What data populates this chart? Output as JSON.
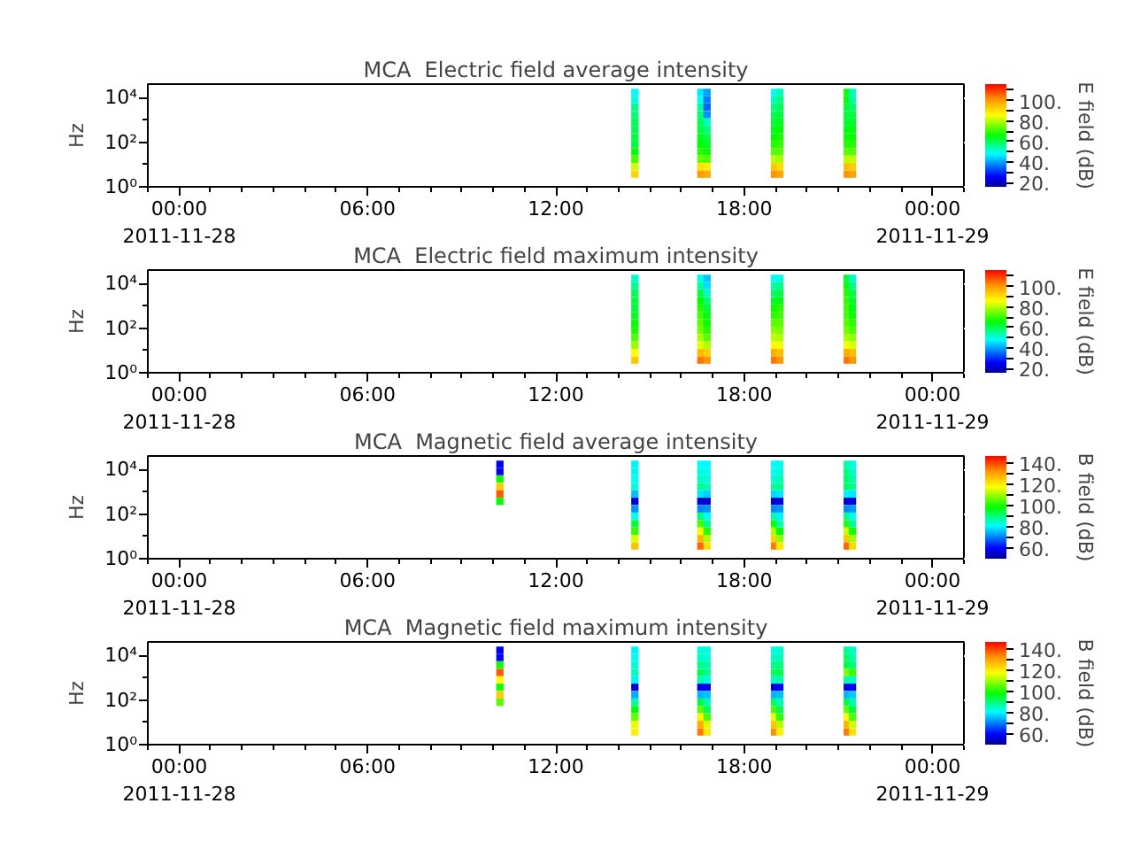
{
  "chart_data": [
    {
      "type": "scatter",
      "title": "MCA  Electric field average intensity",
      "ylabel": "Hz",
      "clabel": "E field (dB)",
      "log": "y",
      "marker": "square",
      "x": [
        "2011-11-28T14:31",
        "2011-11-28T16:37",
        "2011-11-28T16:49",
        "2011-11-28T18:58",
        "2011-11-28T19:08",
        "2011-11-28T21:17",
        "2011-11-28T21:27",
        "2011-11-28T14:31",
        "2011-11-28T16:37",
        "2011-11-28T16:49",
        "2011-11-28T18:58",
        "2011-11-28T19:08",
        "2011-11-28T21:17",
        "2011-11-28T21:27",
        "2011-11-28T14:31",
        "2011-11-28T16:37",
        "2011-11-28T16:49",
        "2011-11-28T18:58",
        "2011-11-28T19:08",
        "2011-11-28T21:17",
        "2011-11-28T21:27",
        "2011-11-28T14:31",
        "2011-11-28T16:37",
        "2011-11-28T16:49",
        "2011-11-28T18:58",
        "2011-11-28T19:08",
        "2011-11-28T21:17",
        "2011-11-28T21:27",
        "2011-11-28T14:31",
        "2011-11-28T16:37",
        "2011-11-28T16:49",
        "2011-11-28T18:58",
        "2011-11-28T19:08",
        "2011-11-28T21:17",
        "2011-11-28T21:27",
        "2011-11-28T14:31",
        "2011-11-28T16:37",
        "2011-11-28T16:49",
        "2011-11-28T18:58",
        "2011-11-28T19:08",
        "2011-11-28T21:17",
        "2011-11-28T21:27",
        "2011-11-28T14:31",
        "2011-11-28T16:37",
        "2011-11-28T16:49",
        "2011-11-28T18:58",
        "2011-11-28T19:08",
        "2011-11-28T21:17",
        "2011-11-28T21:27",
        "2011-11-28T14:31",
        "2011-11-28T16:37",
        "2011-11-28T16:49",
        "2011-11-28T18:58",
        "2011-11-28T19:08",
        "2011-11-28T21:17",
        "2011-11-28T21:27",
        "2011-11-28T14:31",
        "2011-11-28T16:37",
        "2011-11-28T16:49",
        "2011-11-28T18:58",
        "2011-11-28T19:08",
        "2011-11-28T21:17",
        "2011-11-28T21:27",
        "2011-11-28T14:31",
        "2011-11-28T16:37",
        "2011-11-28T16:49",
        "2011-11-28T18:58",
        "2011-11-28T19:08",
        "2011-11-28T21:17",
        "2011-11-28T21:27",
        "2011-11-28T14:31",
        "2011-11-28T16:37",
        "2011-11-28T16:49",
        "2011-11-28T18:58",
        "2011-11-28T19:08",
        "2011-11-28T21:17",
        "2011-11-28T21:27",
        "2011-11-28T14:31",
        "2011-11-28T16:37",
        "2011-11-28T16:49",
        "2011-11-28T18:58",
        "2011-11-28T19:08",
        "2011-11-28T21:17",
        "2011-11-28T21:27"
      ],
      "values": [
        17000,
        17000,
        17000,
        17000,
        17000,
        17000,
        17000,
        8000,
        8000,
        8000,
        8000,
        8000,
        8000,
        8000,
        3700,
        3700,
        3700,
        3700,
        3700,
        3700,
        3700,
        1700,
        1700,
        1700,
        1700,
        1700,
        1700,
        1700,
        800,
        800,
        800,
        800,
        800,
        800,
        800,
        370,
        370,
        370,
        370,
        370,
        370,
        370,
        170,
        170,
        170,
        170,
        170,
        170,
        170,
        80,
        80,
        80,
        80,
        80,
        80,
        80,
        37,
        37,
        37,
        37,
        37,
        37,
        37,
        17,
        17,
        17,
        17,
        17,
        17,
        17,
        8,
        8,
        8,
        8,
        8,
        8,
        8,
        3.7,
        3.7,
        3.7,
        3.7,
        3.7,
        3.7,
        3.7
      ],
      "cvalues": [
        48,
        46,
        40,
        48,
        53,
        67,
        53,
        50,
        49,
        37,
        52,
        57,
        66,
        55,
        56,
        55,
        35,
        57,
        60,
        62,
        59,
        58,
        58,
        39,
        60,
        62,
        62,
        61,
        60,
        60,
        52,
        62,
        64,
        63,
        63,
        60,
        62,
        57,
        64,
        66,
        65,
        65,
        62,
        64,
        61,
        66,
        68,
        67,
        67,
        62,
        66,
        64,
        69,
        70,
        69,
        69,
        66,
        69,
        67,
        73,
        73,
        73,
        73,
        72,
        74,
        73,
        81,
        79,
        81,
        81,
        82,
        90,
        88,
        94,
        91,
        95,
        93,
        92,
        100,
        98,
        101,
        99,
        101,
        99
      ],
      "clim": [
        16,
        116
      ],
      "cticks": [
        {
          "value": 20,
          "label": "20."
        },
        {
          "value": 30,
          "label": null
        },
        {
          "value": 40,
          "label": "40."
        },
        {
          "value": 50,
          "label": null
        },
        {
          "value": 60,
          "label": "60."
        },
        {
          "value": 70,
          "label": null
        },
        {
          "value": 80,
          "label": "80."
        },
        {
          "value": 90,
          "label": null
        },
        {
          "value": 100,
          "label": "100."
        },
        {
          "value": 110,
          "label": null
        }
      ],
      "xlim": [
        "2011-11-27T23:00",
        "2011-11-29T01:00"
      ],
      "xticks": [
        {
          "value": "2011-11-28T00:00",
          "label": "00:00\n2011-11-28"
        },
        {
          "value": "2011-11-28T06:00",
          "label": "06:00"
        },
        {
          "value": "2011-11-28T12:00",
          "label": "12:00"
        },
        {
          "value": "2011-11-28T18:00",
          "label": "18:00"
        },
        {
          "value": "2011-11-29T00:00",
          "label": "00:00\n2011-11-29"
        },
        {
          "value": "2011-11-27T23:00",
          "label": null
        },
        {
          "value": "2011-11-28T01:00",
          "label": null
        },
        {
          "value": "2011-11-28T02:00",
          "label": null
        },
        {
          "value": "2011-11-28T03:00",
          "label": null
        },
        {
          "value": "2011-11-28T04:00",
          "label": null
        },
        {
          "value": "2011-11-28T05:00",
          "label": null
        },
        {
          "value": "2011-11-28T07:00",
          "label": null
        },
        {
          "value": "2011-11-28T08:00",
          "label": null
        },
        {
          "value": "2011-11-28T09:00",
          "label": null
        },
        {
          "value": "2011-11-28T10:00",
          "label": null
        },
        {
          "value": "2011-11-28T11:00",
          "label": null
        },
        {
          "value": "2011-11-28T13:00",
          "label": null
        },
        {
          "value": "2011-11-28T14:00",
          "label": null
        },
        {
          "value": "2011-11-28T15:00",
          "label": null
        },
        {
          "value": "2011-11-28T16:00",
          "label": null
        },
        {
          "value": "2011-11-28T17:00",
          "label": null
        },
        {
          "value": "2011-11-28T19:00",
          "label": null
        },
        {
          "value": "2011-11-28T20:00",
          "label": null
        },
        {
          "value": "2011-11-28T21:00",
          "label": null
        },
        {
          "value": "2011-11-28T22:00",
          "label": null
        },
        {
          "value": "2011-11-28T23:00",
          "label": null
        },
        {
          "value": "2011-11-29T01:00",
          "label": null
        }
      ],
      "ylim": [
        1,
        40000
      ],
      "yticks": [
        {
          "value": 1,
          "label": "10⁰"
        },
        {
          "value": 10,
          "label": null
        },
        {
          "value": 100,
          "label": "10²"
        },
        {
          "value": 1000,
          "label": null
        },
        {
          "value": 10000,
          "label": "10⁴"
        }
      ]
    },
    {
      "type": "scatter",
      "title": "MCA  Electric field maximum intensity",
      "ylabel": "Hz",
      "clabel": "E field (dB)",
      "log": "y",
      "marker": "square",
      "x": [
        "2011-11-28T14:31",
        "2011-11-28T16:37",
        "2011-11-28T16:49",
        "2011-11-28T18:58",
        "2011-11-28T19:08",
        "2011-11-28T21:17",
        "2011-11-28T21:27",
        "2011-11-28T14:31",
        "2011-11-28T16:37",
        "2011-11-28T16:49",
        "2011-11-28T18:58",
        "2011-11-28T19:08",
        "2011-11-28T21:17",
        "2011-11-28T21:27",
        "2011-11-28T14:31",
        "2011-11-28T16:37",
        "2011-11-28T16:49",
        "2011-11-28T18:58",
        "2011-11-28T19:08",
        "2011-11-28T21:17",
        "2011-11-28T21:27",
        "2011-11-28T14:31",
        "2011-11-28T16:37",
        "2011-11-28T16:49",
        "2011-11-28T18:58",
        "2011-11-28T19:08",
        "2011-11-28T21:17",
        "2011-11-28T21:27",
        "2011-11-28T14:31",
        "2011-11-28T16:37",
        "2011-11-28T16:49",
        "2011-11-28T18:58",
        "2011-11-28T19:08",
        "2011-11-28T21:17",
        "2011-11-28T21:27",
        "2011-11-28T14:31",
        "2011-11-28T16:37",
        "2011-11-28T16:49",
        "2011-11-28T18:58",
        "2011-11-28T19:08",
        "2011-11-28T21:17",
        "2011-11-28T21:27",
        "2011-11-28T14:31",
        "2011-11-28T16:37",
        "2011-11-28T16:49",
        "2011-11-28T18:58",
        "2011-11-28T19:08",
        "2011-11-28T21:17",
        "2011-11-28T21:27",
        "2011-11-28T14:31",
        "2011-11-28T16:37",
        "2011-11-28T16:49",
        "2011-11-28T18:58",
        "2011-11-28T19:08",
        "2011-11-28T21:17",
        "2011-11-28T21:27",
        "2011-11-28T14:31",
        "2011-11-28T16:37",
        "2011-11-28T16:49",
        "2011-11-28T18:58",
        "2011-11-28T19:08",
        "2011-11-28T21:17",
        "2011-11-28T21:27",
        "2011-11-28T14:31",
        "2011-11-28T16:37",
        "2011-11-28T16:49",
        "2011-11-28T18:58",
        "2011-11-28T19:08",
        "2011-11-28T21:17",
        "2011-11-28T21:27",
        "2011-11-28T14:31",
        "2011-11-28T16:37",
        "2011-11-28T16:49",
        "2011-11-28T18:58",
        "2011-11-28T19:08",
        "2011-11-28T21:17",
        "2011-11-28T21:27",
        "2011-11-28T14:31",
        "2011-11-28T16:37",
        "2011-11-28T16:49",
        "2011-11-28T18:58",
        "2011-11-28T19:08",
        "2011-11-28T21:17",
        "2011-11-28T21:27"
      ],
      "values": [
        17000,
        17000,
        17000,
        17000,
        17000,
        17000,
        17000,
        8000,
        8000,
        8000,
        8000,
        8000,
        8000,
        8000,
        3700,
        3700,
        3700,
        3700,
        3700,
        3700,
        3700,
        1700,
        1700,
        1700,
        1700,
        1700,
        1700,
        1700,
        800,
        800,
        800,
        800,
        800,
        800,
        800,
        370,
        370,
        370,
        370,
        370,
        370,
        370,
        170,
        170,
        170,
        170,
        170,
        170,
        170,
        80,
        80,
        80,
        80,
        80,
        80,
        80,
        37,
        37,
        37,
        37,
        37,
        37,
        37,
        17,
        17,
        17,
        17,
        17,
        17,
        17,
        8,
        8,
        8,
        8,
        8,
        8,
        8,
        3.7,
        3.7,
        3.7,
        3.7,
        3.7,
        3.7,
        3.7
      ],
      "cvalues": [
        52,
        50,
        43,
        48,
        50,
        63,
        52,
        56,
        55,
        45,
        54,
        56,
        66,
        57,
        60,
        61,
        52,
        59,
        61,
        69,
        61,
        62,
        66,
        58,
        63,
        65,
        70,
        63,
        62,
        69,
        62,
        67,
        69,
        71,
        65,
        64,
        71,
        65,
        69,
        71,
        71,
        67,
        66,
        73,
        67,
        73,
        73,
        73,
        69,
        68,
        75,
        69,
        77,
        76,
        75,
        72,
        72,
        79,
        73,
        81,
        80,
        79,
        77,
        78,
        84,
        80,
        87,
        85,
        85,
        83,
        86,
        96,
        93,
        98,
        95,
        98,
        95,
        94,
        104,
        101,
        104,
        101,
        104,
        101
      ],
      "clim": [
        16,
        116
      ],
      "cticks": [
        {
          "value": 20,
          "label": "20."
        },
        {
          "value": 30,
          "label": null
        },
        {
          "value": 40,
          "label": "40."
        },
        {
          "value": 50,
          "label": null
        },
        {
          "value": 60,
          "label": "60."
        },
        {
          "value": 70,
          "label": null
        },
        {
          "value": 80,
          "label": "80."
        },
        {
          "value": 90,
          "label": null
        },
        {
          "value": 100,
          "label": "100."
        },
        {
          "value": 110,
          "label": null
        }
      ],
      "xlim": [
        "2011-11-27T23:00",
        "2011-11-29T01:00"
      ],
      "xticks": [
        {
          "value": "2011-11-28T00:00",
          "label": "00:00\n2011-11-28"
        },
        {
          "value": "2011-11-28T06:00",
          "label": "06:00"
        },
        {
          "value": "2011-11-28T12:00",
          "label": "12:00"
        },
        {
          "value": "2011-11-28T18:00",
          "label": "18:00"
        },
        {
          "value": "2011-11-29T00:00",
          "label": "00:00\n2011-11-29"
        },
        {
          "value": "2011-11-27T23:00",
          "label": null
        },
        {
          "value": "2011-11-28T01:00",
          "label": null
        },
        {
          "value": "2011-11-28T02:00",
          "label": null
        },
        {
          "value": "2011-11-28T03:00",
          "label": null
        },
        {
          "value": "2011-11-28T04:00",
          "label": null
        },
        {
          "value": "2011-11-28T05:00",
          "label": null
        },
        {
          "value": "2011-11-28T07:00",
          "label": null
        },
        {
          "value": "2011-11-28T08:00",
          "label": null
        },
        {
          "value": "2011-11-28T09:00",
          "label": null
        },
        {
          "value": "2011-11-28T10:00",
          "label": null
        },
        {
          "value": "2011-11-28T11:00",
          "label": null
        },
        {
          "value": "2011-11-28T13:00",
          "label": null
        },
        {
          "value": "2011-11-28T14:00",
          "label": null
        },
        {
          "value": "2011-11-28T15:00",
          "label": null
        },
        {
          "value": "2011-11-28T16:00",
          "label": null
        },
        {
          "value": "2011-11-28T17:00",
          "label": null
        },
        {
          "value": "2011-11-28T19:00",
          "label": null
        },
        {
          "value": "2011-11-28T20:00",
          "label": null
        },
        {
          "value": "2011-11-28T21:00",
          "label": null
        },
        {
          "value": "2011-11-28T22:00",
          "label": null
        },
        {
          "value": "2011-11-28T23:00",
          "label": null
        },
        {
          "value": "2011-11-29T01:00",
          "label": null
        }
      ],
      "ylim": [
        1,
        40000
      ],
      "yticks": [
        {
          "value": 1,
          "label": "10⁰"
        },
        {
          "value": 10,
          "label": null
        },
        {
          "value": 100,
          "label": "10²"
        },
        {
          "value": 1000,
          "label": null
        },
        {
          "value": 10000,
          "label": "10⁴"
        }
      ]
    },
    {
      "type": "scatter",
      "title": "MCA  Magnetic field average intensity",
      "ylabel": "Hz",
      "clabel": "B field (dB)",
      "log": "y",
      "marker": "square",
      "x": [
        "2011-11-28T10:13",
        "2011-11-28T14:31",
        "2011-11-28T16:37",
        "2011-11-28T16:49",
        "2011-11-28T18:58",
        "2011-11-28T19:08",
        "2011-11-28T21:17",
        "2011-11-28T21:27",
        "2011-11-28T10:13",
        "2011-11-28T14:31",
        "2011-11-28T16:37",
        "2011-11-28T16:49",
        "2011-11-28T18:58",
        "2011-11-28T19:08",
        "2011-11-28T21:17",
        "2011-11-28T21:27",
        "2011-11-28T10:13",
        "2011-11-28T14:31",
        "2011-11-28T16:37",
        "2011-11-28T16:49",
        "2011-11-28T18:58",
        "2011-11-28T19:08",
        "2011-11-28T21:17",
        "2011-11-28T21:27",
        "2011-11-28T10:13",
        "2011-11-28T14:31",
        "2011-11-28T16:37",
        "2011-11-28T16:49",
        "2011-11-28T18:58",
        "2011-11-28T19:08",
        "2011-11-28T21:17",
        "2011-11-28T21:27",
        "2011-11-28T10:13",
        "2011-11-28T14:31",
        "2011-11-28T16:37",
        "2011-11-28T16:49",
        "2011-11-28T18:58",
        "2011-11-28T19:08",
        "2011-11-28T21:17",
        "2011-11-28T21:27",
        "2011-11-28T10:13",
        "2011-11-28T14:31",
        "2011-11-28T16:37",
        "2011-11-28T16:49",
        "2011-11-28T18:58",
        "2011-11-28T19:08",
        "2011-11-28T21:17",
        "2011-11-28T21:27",
        "2011-11-28T14:31",
        "2011-11-28T16:37",
        "2011-11-28T16:49",
        "2011-11-28T18:58",
        "2011-11-28T19:08",
        "2011-11-28T21:17",
        "2011-11-28T21:27",
        "2011-11-28T14:31",
        "2011-11-28T16:37",
        "2011-11-28T16:49",
        "2011-11-28T18:58",
        "2011-11-28T19:08",
        "2011-11-28T21:17",
        "2011-11-28T21:27",
        "2011-11-28T14:31",
        "2011-11-28T16:37",
        "2011-11-28T16:49",
        "2011-11-28T18:58",
        "2011-11-28T19:08",
        "2011-11-28T21:17",
        "2011-11-28T21:27",
        "2011-11-28T14:31",
        "2011-11-28T16:37",
        "2011-11-28T16:49",
        "2011-11-28T18:58",
        "2011-11-28T19:08",
        "2011-11-28T21:17",
        "2011-11-28T21:27",
        "2011-11-28T14:31",
        "2011-11-28T16:37",
        "2011-11-28T16:49",
        "2011-11-28T18:58",
        "2011-11-28T19:08",
        "2011-11-28T21:17",
        "2011-11-28T21:27",
        "2011-11-28T14:31",
        "2011-11-28T16:37",
        "2011-11-28T16:49",
        "2011-11-28T18:58",
        "2011-11-28T19:08",
        "2011-11-28T21:17",
        "2011-11-28T21:27"
      ],
      "values": [
        17000,
        17000,
        17000,
        17000,
        17000,
        17000,
        17000,
        17000,
        8000,
        8000,
        8000,
        8000,
        8000,
        8000,
        8000,
        8000,
        3700,
        3700,
        3700,
        3700,
        3700,
        3700,
        3700,
        3700,
        1700,
        1700,
        1700,
        1700,
        1700,
        1700,
        1700,
        1700,
        800,
        800,
        800,
        800,
        800,
        800,
        800,
        800,
        370,
        370,
        370,
        370,
        370,
        370,
        370,
        370,
        170,
        170,
        170,
        170,
        170,
        170,
        170,
        80,
        80,
        80,
        80,
        80,
        80,
        80,
        37,
        37,
        37,
        37,
        37,
        37,
        37,
        17,
        17,
        17,
        17,
        17,
        17,
        17,
        8,
        8,
        8,
        8,
        8,
        8,
        8,
        3.7,
        3.7,
        3.7,
        3.7,
        3.7,
        3.7,
        3.7
      ],
      "cvalues": [
        58,
        80,
        81,
        81,
        81,
        82,
        87,
        83,
        58,
        80,
        83,
        82,
        82,
        83,
        90,
        85,
        100,
        82,
        85,
        84,
        84,
        86,
        91,
        87,
        125,
        84,
        89,
        87,
        88,
        89,
        92,
        89,
        138,
        76,
        79,
        77,
        78,
        79,
        80,
        79,
        98,
        56,
        55,
        56,
        55,
        57,
        55,
        57,
        72,
        71,
        72,
        71,
        72,
        71,
        73,
        82,
        90,
        81,
        87,
        80,
        89,
        82,
        95,
        104,
        89,
        99,
        87,
        101,
        89,
        102,
        117,
        101,
        112,
        98,
        114,
        100,
        115,
        128,
        112,
        124,
        109,
        126,
        111,
        126,
        137,
        122,
        135,
        121,
        137,
        123
      ],
      "clim": [
        50,
        147
      ],
      "cticks": [
        {
          "value": 60,
          "label": "60."
        },
        {
          "value": 70,
          "label": null
        },
        {
          "value": 80,
          "label": "80."
        },
        {
          "value": 90,
          "label": null
        },
        {
          "value": 100,
          "label": "100."
        },
        {
          "value": 110,
          "label": null
        },
        {
          "value": 120,
          "label": "120."
        },
        {
          "value": 130,
          "label": null
        },
        {
          "value": 140,
          "label": "140."
        }
      ],
      "xlim": [
        "2011-11-27T23:00",
        "2011-11-29T01:00"
      ],
      "xticks": [
        {
          "value": "2011-11-28T00:00",
          "label": "00:00\n2011-11-28"
        },
        {
          "value": "2011-11-28T06:00",
          "label": "06:00"
        },
        {
          "value": "2011-11-28T12:00",
          "label": "12:00"
        },
        {
          "value": "2011-11-28T18:00",
          "label": "18:00"
        },
        {
          "value": "2011-11-29T00:00",
          "label": "00:00\n2011-11-29"
        },
        {
          "value": "2011-11-27T23:00",
          "label": null
        },
        {
          "value": "2011-11-28T01:00",
          "label": null
        },
        {
          "value": "2011-11-28T02:00",
          "label": null
        },
        {
          "value": "2011-11-28T03:00",
          "label": null
        },
        {
          "value": "2011-11-28T04:00",
          "label": null
        },
        {
          "value": "2011-11-28T05:00",
          "label": null
        },
        {
          "value": "2011-11-28T07:00",
          "label": null
        },
        {
          "value": "2011-11-28T08:00",
          "label": null
        },
        {
          "value": "2011-11-28T09:00",
          "label": null
        },
        {
          "value": "2011-11-28T10:00",
          "label": null
        },
        {
          "value": "2011-11-28T11:00",
          "label": null
        },
        {
          "value": "2011-11-28T13:00",
          "label": null
        },
        {
          "value": "2011-11-28T14:00",
          "label": null
        },
        {
          "value": "2011-11-28T15:00",
          "label": null
        },
        {
          "value": "2011-11-28T16:00",
          "label": null
        },
        {
          "value": "2011-11-28T17:00",
          "label": null
        },
        {
          "value": "2011-11-28T19:00",
          "label": null
        },
        {
          "value": "2011-11-28T20:00",
          "label": null
        },
        {
          "value": "2011-11-28T21:00",
          "label": null
        },
        {
          "value": "2011-11-28T22:00",
          "label": null
        },
        {
          "value": "2011-11-28T23:00",
          "label": null
        },
        {
          "value": "2011-11-29T01:00",
          "label": null
        }
      ],
      "ylim": [
        1,
        40000
      ],
      "yticks": [
        {
          "value": 1,
          "label": "10⁰"
        },
        {
          "value": 10,
          "label": null
        },
        {
          "value": 100,
          "label": "10²"
        },
        {
          "value": 1000,
          "label": null
        },
        {
          "value": 10000,
          "label": "10⁴"
        }
      ]
    },
    {
      "type": "scatter",
      "title": "MCA  Magnetic field maximum intensity",
      "ylabel": "Hz",
      "clabel": "B field (dB)",
      "log": "y",
      "marker": "square",
      "x": [
        "2011-11-28T10:13",
        "2011-11-28T14:31",
        "2011-11-28T16:37",
        "2011-11-28T16:49",
        "2011-11-28T18:58",
        "2011-11-28T19:08",
        "2011-11-28T21:17",
        "2011-11-28T21:27",
        "2011-11-28T10:13",
        "2011-11-28T14:31",
        "2011-11-28T16:37",
        "2011-11-28T16:49",
        "2011-11-28T18:58",
        "2011-11-28T19:08",
        "2011-11-28T21:17",
        "2011-11-28T21:27",
        "2011-11-28T10:13",
        "2011-11-28T14:31",
        "2011-11-28T16:37",
        "2011-11-28T16:49",
        "2011-11-28T18:58",
        "2011-11-28T19:08",
        "2011-11-28T21:17",
        "2011-11-28T21:27",
        "2011-11-28T10:13",
        "2011-11-28T14:31",
        "2011-11-28T16:37",
        "2011-11-28T16:49",
        "2011-11-28T18:58",
        "2011-11-28T19:08",
        "2011-11-28T21:17",
        "2011-11-28T21:27",
        "2011-11-28T10:13",
        "2011-11-28T14:31",
        "2011-11-28T16:37",
        "2011-11-28T16:49",
        "2011-11-28T18:58",
        "2011-11-28T19:08",
        "2011-11-28T21:17",
        "2011-11-28T21:27",
        "2011-11-28T10:13",
        "2011-11-28T14:31",
        "2011-11-28T16:37",
        "2011-11-28T16:49",
        "2011-11-28T18:58",
        "2011-11-28T19:08",
        "2011-11-28T21:17",
        "2011-11-28T21:27",
        "2011-11-28T10:13",
        "2011-11-28T14:31",
        "2011-11-28T16:37",
        "2011-11-28T16:49",
        "2011-11-28T18:58",
        "2011-11-28T19:08",
        "2011-11-28T21:17",
        "2011-11-28T21:27",
        "2011-11-28T10:13",
        "2011-11-28T14:31",
        "2011-11-28T16:37",
        "2011-11-28T16:49",
        "2011-11-28T18:58",
        "2011-11-28T19:08",
        "2011-11-28T21:17",
        "2011-11-28T21:27",
        "2011-11-28T14:31",
        "2011-11-28T16:37",
        "2011-11-28T16:49",
        "2011-11-28T18:58",
        "2011-11-28T19:08",
        "2011-11-28T21:17",
        "2011-11-28T21:27",
        "2011-11-28T14:31",
        "2011-11-28T16:37",
        "2011-11-28T16:49",
        "2011-11-28T18:58",
        "2011-11-28T19:08",
        "2011-11-28T21:17",
        "2011-11-28T21:27",
        "2011-11-28T14:31",
        "2011-11-28T16:37",
        "2011-11-28T16:49",
        "2011-11-28T18:58",
        "2011-11-28T19:08",
        "2011-11-28T21:17",
        "2011-11-28T21:27",
        "2011-11-28T14:31",
        "2011-11-28T16:37",
        "2011-11-28T16:49",
        "2011-11-28T18:58",
        "2011-11-28T19:08",
        "2011-11-28T21:17",
        "2011-11-28T21:27"
      ],
      "values": [
        17000,
        17000,
        17000,
        17000,
        17000,
        17000,
        17000,
        17000,
        8000,
        8000,
        8000,
        8000,
        8000,
        8000,
        8000,
        8000,
        3700,
        3700,
        3700,
        3700,
        3700,
        3700,
        3700,
        3700,
        1700,
        1700,
        1700,
        1700,
        1700,
        1700,
        1700,
        1700,
        800,
        800,
        800,
        800,
        800,
        800,
        800,
        800,
        370,
        370,
        370,
        370,
        370,
        370,
        370,
        370,
        170,
        170,
        170,
        170,
        170,
        170,
        170,
        170,
        80,
        80,
        80,
        80,
        80,
        80,
        80,
        80,
        37,
        37,
        37,
        37,
        37,
        37,
        37,
        17,
        17,
        17,
        17,
        17,
        17,
        17,
        8,
        8,
        8,
        8,
        8,
        8,
        8,
        3.7,
        3.7,
        3.7,
        3.7,
        3.7,
        3.7,
        3.7
      ],
      "cvalues": [
        58,
        80,
        83,
        83,
        83,
        84,
        89,
        85,
        60,
        82,
        85,
        84,
        85,
        86,
        92,
        87,
        100,
        84,
        89,
        87,
        89,
        90,
        94,
        90,
        138,
        86,
        93,
        89,
        92,
        93,
        108,
        102,
        118,
        80,
        86,
        83,
        85,
        86,
        87,
        85,
        100,
        56,
        57,
        58,
        56,
        59,
        57,
        59,
        125,
        74,
        75,
        76,
        75,
        76,
        75,
        77,
        105,
        88,
        94,
        87,
        92,
        86,
        94,
        87,
        98,
        106,
        93,
        104,
        93,
        106,
        95,
        106,
        119,
        104,
        116,
        102,
        118,
        104,
        116,
        129,
        115,
        126,
        112,
        128,
        114,
        120,
        135,
        121,
        133,
        120,
        135,
        122
      ],
      "clim": [
        50,
        147
      ],
      "cticks": [
        {
          "value": 60,
          "label": "60."
        },
        {
          "value": 70,
          "label": null
        },
        {
          "value": 80,
          "label": "80."
        },
        {
          "value": 90,
          "label": null
        },
        {
          "value": 100,
          "label": "100."
        },
        {
          "value": 110,
          "label": null
        },
        {
          "value": 120,
          "label": "120."
        },
        {
          "value": 130,
          "label": null
        },
        {
          "value": 140,
          "label": "140."
        }
      ],
      "xlim": [
        "2011-11-27T23:00",
        "2011-11-29T01:00"
      ],
      "xticks": [
        {
          "value": "2011-11-28T00:00",
          "label": "00:00\n2011-11-28"
        },
        {
          "value": "2011-11-28T06:00",
          "label": "06:00"
        },
        {
          "value": "2011-11-28T12:00",
          "label": "12:00"
        },
        {
          "value": "2011-11-28T18:00",
          "label": "18:00"
        },
        {
          "value": "2011-11-29T00:00",
          "label": "00:00\n2011-11-29"
        },
        {
          "value": "2011-11-27T23:00",
          "label": null
        },
        {
          "value": "2011-11-28T01:00",
          "label": null
        },
        {
          "value": "2011-11-28T02:00",
          "label": null
        },
        {
          "value": "2011-11-28T03:00",
          "label": null
        },
        {
          "value": "2011-11-28T04:00",
          "label": null
        },
        {
          "value": "2011-11-28T05:00",
          "label": null
        },
        {
          "value": "2011-11-28T07:00",
          "label": null
        },
        {
          "value": "2011-11-28T08:00",
          "label": null
        },
        {
          "value": "2011-11-28T09:00",
          "label": null
        },
        {
          "value": "2011-11-28T10:00",
          "label": null
        },
        {
          "value": "2011-11-28T11:00",
          "label": null
        },
        {
          "value": "2011-11-28T13:00",
          "label": null
        },
        {
          "value": "2011-11-28T14:00",
          "label": null
        },
        {
          "value": "2011-11-28T15:00",
          "label": null
        },
        {
          "value": "2011-11-28T16:00",
          "label": null
        },
        {
          "value": "2011-11-28T17:00",
          "label": null
        },
        {
          "value": "2011-11-28T19:00",
          "label": null
        },
        {
          "value": "2011-11-28T20:00",
          "label": null
        },
        {
          "value": "2011-11-28T21:00",
          "label": null
        },
        {
          "value": "2011-11-28T22:00",
          "label": null
        },
        {
          "value": "2011-11-28T23:00",
          "label": null
        },
        {
          "value": "2011-11-29T01:00",
          "label": null
        }
      ],
      "ylim": [
        1,
        40000
      ],
      "yticks": [
        {
          "value": 1,
          "label": "10⁰"
        },
        {
          "value": 10,
          "label": null
        },
        {
          "value": 100,
          "label": "10²"
        },
        {
          "value": 1000,
          "label": null
        },
        {
          "value": 10000,
          "label": "10⁴"
        }
      ]
    }
  ]
}
